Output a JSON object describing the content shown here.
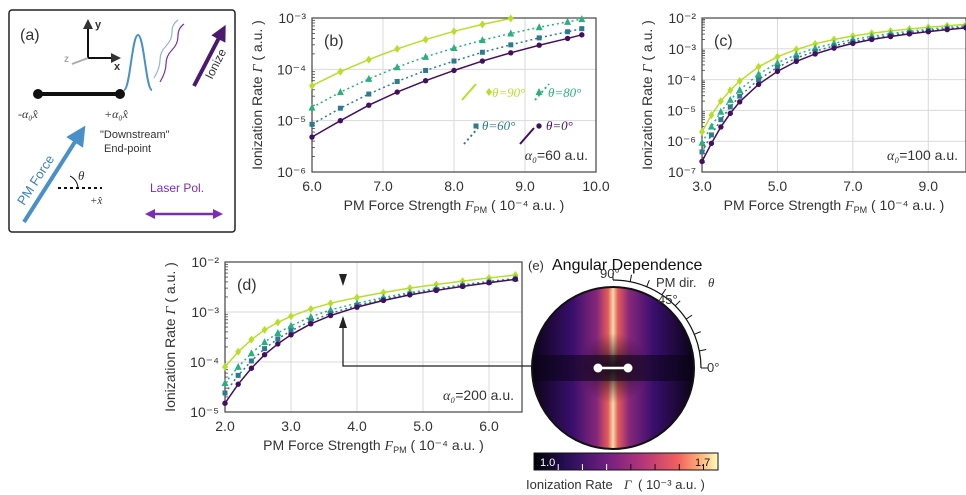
{
  "panel_a": {
    "label": "(a)",
    "axis_y": "y",
    "axis_x": "x",
    "axis_z": "z",
    "left_point": "-α₀x̂",
    "right_point": "+α₀x̂",
    "downstream_line1": "\"Downstream\"",
    "downstream_line2": "End-point",
    "ionize": "Ionize",
    "pm_force": "PM Force",
    "theta": "θ",
    "plus_x": "+x̂",
    "laser_pol": "Laser Pol."
  },
  "colors": {
    "theta90": "#b8de29",
    "theta80": "#2ab07f",
    "theta60": "#2c7b8e",
    "theta0": "#440f5e",
    "pm_force": "#4a90c8",
    "laser": "#7b2cb4"
  },
  "panel_e": {
    "label": "(e)",
    "title": "Angular Dependence",
    "pm_dir": "PM dir.",
    "theta_sym": "θ",
    "tick_90": "90°",
    "tick_45": "45°",
    "tick_0": "0°",
    "cbar_min": "1.0",
    "cbar_max": "1.7",
    "cbar_label": "Ionization Rate",
    "cbar_sym": "Γ",
    "cbar_unit": "( 10⁻³ a.u. )"
  },
  "chart_data": [
    {
      "panel": "(b)",
      "type": "line",
      "ylabel": "Ionization Rate",
      "ylabel_sym": "Γ",
      "ylabel_unit": "( a.u. )",
      "xlabel": "PM Force Strength",
      "xlabel_sym": "F",
      "xlabel_sub": "PM",
      "xlabel_unit": "( 10⁻⁴ a.u. )",
      "xlim": [
        6.0,
        10.0
      ],
      "ylim_log10": [
        -6,
        -3
      ],
      "x_ticks": [
        "6.0",
        "7.0",
        "8.0",
        "9.0",
        "10.0"
      ],
      "y_ticks": [
        "10⁻⁶",
        "10⁻⁵",
        "10⁻⁴",
        "10⁻³"
      ],
      "annotation": "α₀=60 a.u.",
      "legend": [
        "θ=90°",
        "θ=80°",
        "θ=60°",
        "θ=0°"
      ],
      "series": [
        {
          "name": "θ=90°",
          "marker": "diamond",
          "x": [
            6.0,
            6.4,
            6.8,
            7.2,
            7.6,
            8.0,
            8.4,
            8.8,
            9.2,
            9.6,
            9.8
          ],
          "y": [
            4.8e-05,
            9e-05,
            0.000155,
            0.00025,
            0.00038,
            0.00055,
            0.00075,
            0.00098,
            0.0012,
            0.00145,
            0.0016
          ]
        },
        {
          "name": "θ=80°",
          "marker": "triangle",
          "x": [
            6.0,
            6.4,
            6.8,
            7.2,
            7.6,
            8.0,
            8.4,
            8.8,
            9.2,
            9.6,
            9.8
          ],
          "y": [
            1.8e-05,
            3.6e-05,
            6.5e-05,
            0.00011,
            0.000175,
            0.00026,
            0.00037,
            0.0005,
            0.00066,
            0.00084,
            0.00095
          ]
        },
        {
          "name": "θ=60°",
          "marker": "square",
          "x": [
            6.0,
            6.4,
            6.8,
            7.2,
            7.6,
            8.0,
            8.4,
            8.8,
            9.2,
            9.6,
            9.8
          ],
          "y": [
            8.5e-06,
            1.75e-05,
            3.3e-05,
            5.8e-05,
            9.5e-05,
            0.000145,
            0.000215,
            0.0003,
            0.00041,
            0.00054,
            0.00062
          ]
        },
        {
          "name": "θ=0°",
          "marker": "circle",
          "x": [
            6.0,
            6.4,
            6.8,
            7.2,
            7.6,
            8.0,
            8.4,
            8.8,
            9.2,
            9.6,
            9.8
          ],
          "y": [
            4.8e-06,
            1e-05,
            2e-05,
            3.6e-05,
            6e-05,
            9.5e-05,
            0.000145,
            0.00021,
            0.000295,
            0.0004,
            0.00047
          ]
        }
      ]
    },
    {
      "panel": "(c)",
      "type": "line",
      "ylabel": "Ionization Rate",
      "ylabel_sym": "Γ",
      "ylabel_unit": "( a.u. )",
      "xlabel": "PM Force Strength",
      "xlabel_sym": "F",
      "xlabel_sub": "PM",
      "xlabel_unit": "( 10⁻⁴ a.u. )",
      "xlim": [
        3.0,
        10.0
      ],
      "ylim_log10": [
        -7,
        -2
      ],
      "x_ticks": [
        "3.0",
        "5.0",
        "7.0",
        "9.0"
      ],
      "y_ticks": [
        "10⁻⁷",
        "10⁻⁶",
        "10⁻⁵",
        "10⁻⁴",
        "10⁻³",
        "10⁻²"
      ],
      "annotation": "α₀=100 a.u.",
      "series": [
        {
          "name": "θ=90°",
          "marker": "diamond",
          "x": [
            3.0,
            3.25,
            3.5,
            3.75,
            4.0,
            4.5,
            5.0,
            5.5,
            6.0,
            6.5,
            7.0,
            7.5,
            8.0,
            8.5,
            9.0,
            9.5,
            10.0
          ],
          "y": [
            2e-06,
            7e-06,
            2e-05,
            4.5e-05,
            9e-05,
            0.00026,
            0.00055,
            0.00095,
            0.00145,
            0.002,
            0.0026,
            0.0032,
            0.0038,
            0.0044,
            0.005,
            0.0056,
            0.0062
          ]
        },
        {
          "name": "θ=80°",
          "marker": "triangle",
          "x": [
            3.0,
            3.25,
            3.5,
            3.75,
            4.0,
            4.5,
            5.0,
            5.5,
            6.0,
            6.5,
            7.0,
            7.5,
            8.0,
            8.5,
            9.0,
            9.5,
            10.0
          ],
          "y": [
            9e-07,
            3e-06,
            9e-06,
            2.2e-05,
            4.6e-05,
            0.00015,
            0.00035,
            0.00065,
            0.00105,
            0.0015,
            0.002,
            0.00255,
            0.0031,
            0.0037,
            0.0043,
            0.0049,
            0.0055
          ]
        },
        {
          "name": "θ=60°",
          "marker": "square",
          "x": [
            3.0,
            3.25,
            3.5,
            3.75,
            4.0,
            4.5,
            5.0,
            5.5,
            6.0,
            6.5,
            7.0,
            7.5,
            8.0,
            8.5,
            9.0,
            9.5,
            10.0
          ],
          "y": [
            4.5e-07,
            1.6e-06,
            5e-06,
            1.3e-05,
            2.9e-05,
            0.0001,
            0.00025,
            0.0005,
            0.00083,
            0.00125,
            0.0017,
            0.0022,
            0.00275,
            0.0033,
            0.0039,
            0.0045,
            0.0051
          ]
        },
        {
          "name": "θ=0°",
          "marker": "circle",
          "x": [
            3.0,
            3.25,
            3.5,
            3.75,
            4.0,
            4.5,
            5.0,
            5.5,
            6.0,
            6.5,
            7.0,
            7.5,
            8.0,
            8.5,
            9.0,
            9.5,
            10.0
          ],
          "y": [
            2.2e-07,
            8.5e-07,
            2.9e-06,
            8e-06,
            1.9e-05,
            7e-05,
            0.000185,
            0.00039,
            0.00068,
            0.00105,
            0.0015,
            0.002,
            0.0025,
            0.00305,
            0.0036,
            0.0042,
            0.0048
          ]
        }
      ]
    },
    {
      "panel": "(d)",
      "type": "line",
      "ylabel": "Ionization Rate",
      "ylabel_sym": "Γ",
      "ylabel_unit": "( a.u. )",
      "xlabel": "PM Force Strength",
      "xlabel_sym": "F",
      "xlabel_sub": "PM",
      "xlabel_unit": "( 10⁻⁴ a.u. )",
      "xlim": [
        2.0,
        6.5
      ],
      "ylim_log10": [
        -5,
        -2
      ],
      "x_ticks": [
        "2.0",
        "3.0",
        "4.0",
        "5.0",
        "6.0"
      ],
      "y_ticks": [
        "10⁻⁵",
        "10⁻⁴",
        "10⁻³",
        "10⁻²"
      ],
      "annotation": "α₀=200 a.u.",
      "series": [
        {
          "name": "θ=90°",
          "marker": "diamond",
          "x": [
            2.0,
            2.2,
            2.4,
            2.6,
            2.8,
            3.0,
            3.3,
            3.6,
            4.0,
            4.4,
            4.8,
            5.2,
            5.6,
            6.0,
            6.4
          ],
          "y": [
            8e-05,
            0.00016,
            0.00028,
            0.00044,
            0.00062,
            0.00082,
            0.00115,
            0.0015,
            0.00195,
            0.00245,
            0.003,
            0.00355,
            0.00415,
            0.0048,
            0.0055
          ]
        },
        {
          "name": "θ=80°",
          "marker": "triangle",
          "x": [
            2.0,
            2.2,
            2.4,
            2.6,
            2.8,
            3.0,
            3.3,
            3.6,
            4.0,
            4.4,
            4.8,
            5.2,
            5.6,
            6.0,
            6.4
          ],
          "y": [
            3.8e-05,
            8e-05,
            0.00015,
            0.00025,
            0.00038,
            0.00053,
            0.0008,
            0.0011,
            0.0015,
            0.00195,
            0.00245,
            0.00295,
            0.0035,
            0.0041,
            0.0047
          ]
        },
        {
          "name": "θ=60°",
          "marker": "square",
          "x": [
            2.0,
            2.2,
            2.4,
            2.6,
            2.8,
            3.0,
            3.3,
            3.6,
            4.0,
            4.4,
            4.8,
            5.2,
            5.6,
            6.0,
            6.4
          ],
          "y": [
            2.4e-05,
            5.4e-05,
            0.000105,
            0.000185,
            0.00029,
            0.00042,
            0.00066,
            0.00094,
            0.00135,
            0.0018,
            0.0023,
            0.0028,
            0.00335,
            0.00395,
            0.0046
          ]
        },
        {
          "name": "θ=0°",
          "marker": "circle",
          "x": [
            2.0,
            2.2,
            2.4,
            2.6,
            2.8,
            3.0,
            3.3,
            3.6,
            4.0,
            4.4,
            4.8,
            5.2,
            5.6,
            6.0,
            6.4
          ],
          "y": [
            1.5e-05,
            3.6e-05,
            7.5e-05,
            0.00014,
            0.00023,
            0.00035,
            0.00058,
            0.00085,
            0.00125,
            0.0017,
            0.0022,
            0.0027,
            0.00325,
            0.00385,
            0.0045
          ]
        }
      ]
    }
  ]
}
